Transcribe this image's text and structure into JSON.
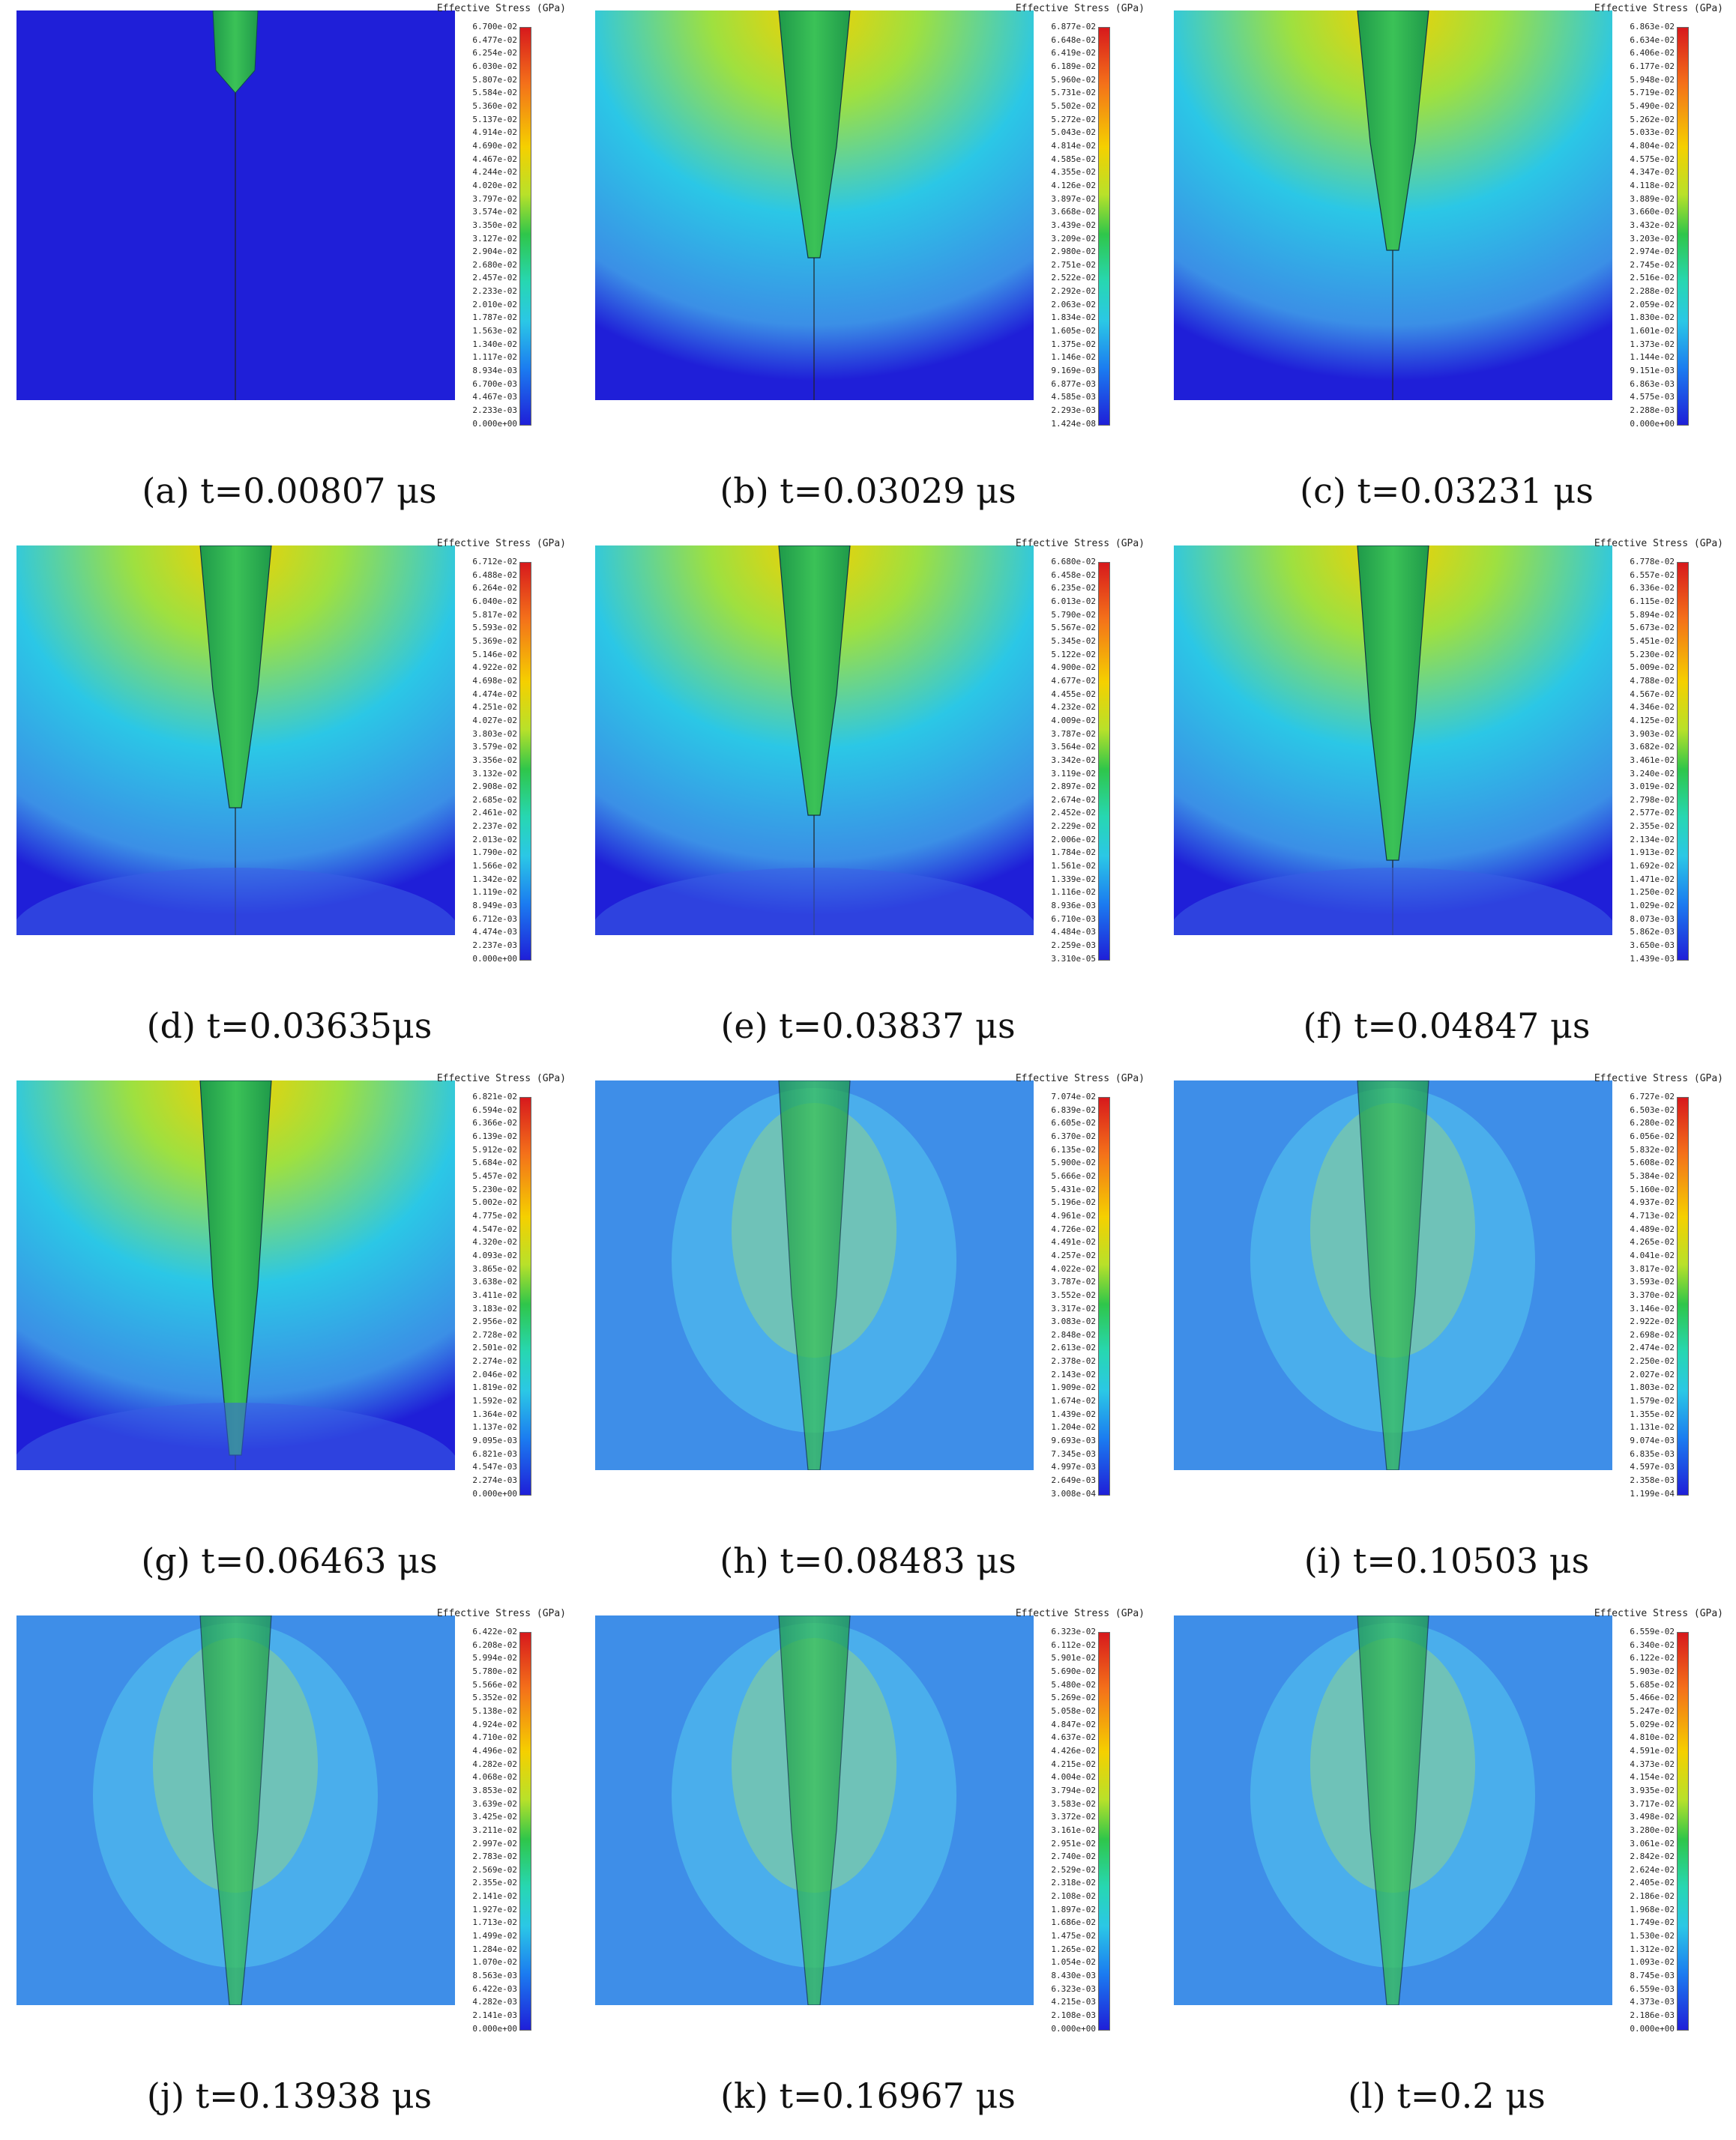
{
  "colorbar_title": "Effective Stress (GPa)",
  "colors": {
    "low": "#1f1fd8",
    "cyan": "#2bc7e6",
    "green": "#2fc64a",
    "yellow": "#f5d000",
    "red": "#d7191c"
  },
  "panels": [
    {
      "caption": "(a) t=0.00807 μs",
      "ticks": [
        "6.700e-02",
        "6.477e-02",
        "6.254e-02",
        "6.030e-02",
        "5.807e-02",
        "5.584e-02",
        "5.360e-02",
        "5.137e-02",
        "4.914e-02",
        "4.690e-02",
        "4.467e-02",
        "4.244e-02",
        "4.020e-02",
        "3.797e-02",
        "3.574e-02",
        "3.350e-02",
        "3.127e-02",
        "2.904e-02",
        "2.680e-02",
        "2.457e-02",
        "2.233e-02",
        "2.010e-02",
        "1.787e-02",
        "1.563e-02",
        "1.340e-02",
        "1.117e-02",
        "8.934e-03",
        "6.700e-03",
        "4.467e-03",
        "2.233e-03",
        "0.000e+00"
      ]
    },
    {
      "caption": "(b) t=0.03029 μs",
      "ticks": [
        "6.877e-02",
        "6.648e-02",
        "6.419e-02",
        "6.189e-02",
        "5.960e-02",
        "5.731e-02",
        "5.502e-02",
        "5.272e-02",
        "5.043e-02",
        "4.814e-02",
        "4.585e-02",
        "4.355e-02",
        "4.126e-02",
        "3.897e-02",
        "3.668e-02",
        "3.439e-02",
        "3.209e-02",
        "2.980e-02",
        "2.751e-02",
        "2.522e-02",
        "2.292e-02",
        "2.063e-02",
        "1.834e-02",
        "1.605e-02",
        "1.375e-02",
        "1.146e-02",
        "9.169e-03",
        "6.877e-03",
        "4.585e-03",
        "2.293e-03",
        "1.424e-08"
      ]
    },
    {
      "caption": "(c) t=0.03231 μs",
      "ticks": [
        "6.863e-02",
        "6.634e-02",
        "6.406e-02",
        "6.177e-02",
        "5.948e-02",
        "5.719e-02",
        "5.490e-02",
        "5.262e-02",
        "5.033e-02",
        "4.804e-02",
        "4.575e-02",
        "4.347e-02",
        "4.118e-02",
        "3.889e-02",
        "3.660e-02",
        "3.432e-02",
        "3.203e-02",
        "2.974e-02",
        "2.745e-02",
        "2.516e-02",
        "2.288e-02",
        "2.059e-02",
        "1.830e-02",
        "1.601e-02",
        "1.373e-02",
        "1.144e-02",
        "9.151e-03",
        "6.863e-03",
        "4.575e-03",
        "2.288e-03",
        "0.000e+00"
      ]
    },
    {
      "caption": "(d) t=0.03635μs",
      "ticks": [
        "6.712e-02",
        "6.488e-02",
        "6.264e-02",
        "6.040e-02",
        "5.817e-02",
        "5.593e-02",
        "5.369e-02",
        "5.146e-02",
        "4.922e-02",
        "4.698e-02",
        "4.474e-02",
        "4.251e-02",
        "4.027e-02",
        "3.803e-02",
        "3.579e-02",
        "3.356e-02",
        "3.132e-02",
        "2.908e-02",
        "2.685e-02",
        "2.461e-02",
        "2.237e-02",
        "2.013e-02",
        "1.790e-02",
        "1.566e-02",
        "1.342e-02",
        "1.119e-02",
        "8.949e-03",
        "6.712e-03",
        "4.474e-03",
        "2.237e-03",
        "0.000e+00"
      ]
    },
    {
      "caption": "(e) t=0.03837 μs",
      "ticks": [
        "6.680e-02",
        "6.458e-02",
        "6.235e-02",
        "6.013e-02",
        "5.790e-02",
        "5.567e-02",
        "5.345e-02",
        "5.122e-02",
        "4.900e-02",
        "4.677e-02",
        "4.455e-02",
        "4.232e-02",
        "4.009e-02",
        "3.787e-02",
        "3.564e-02",
        "3.342e-02",
        "3.119e-02",
        "2.897e-02",
        "2.674e-02",
        "2.452e-02",
        "2.229e-02",
        "2.006e-02",
        "1.784e-02",
        "1.561e-02",
        "1.339e-02",
        "1.116e-02",
        "8.936e-03",
        "6.710e-03",
        "4.484e-03",
        "2.259e-03",
        "3.310e-05"
      ]
    },
    {
      "caption": "(f) t=0.04847 μs",
      "ticks": [
        "6.778e-02",
        "6.557e-02",
        "6.336e-02",
        "6.115e-02",
        "5.894e-02",
        "5.673e-02",
        "5.451e-02",
        "5.230e-02",
        "5.009e-02",
        "4.788e-02",
        "4.567e-02",
        "4.346e-02",
        "4.125e-02",
        "3.903e-02",
        "3.682e-02",
        "3.461e-02",
        "3.240e-02",
        "3.019e-02",
        "2.798e-02",
        "2.577e-02",
        "2.355e-02",
        "2.134e-02",
        "1.913e-02",
        "1.692e-02",
        "1.471e-02",
        "1.250e-02",
        "1.029e-02",
        "8.073e-03",
        "5.862e-03",
        "3.650e-03",
        "1.439e-03"
      ]
    },
    {
      "caption": "(g) t=0.06463 μs",
      "ticks": [
        "6.821e-02",
        "6.594e-02",
        "6.366e-02",
        "6.139e-02",
        "5.912e-02",
        "5.684e-02",
        "5.457e-02",
        "5.230e-02",
        "5.002e-02",
        "4.775e-02",
        "4.547e-02",
        "4.320e-02",
        "4.093e-02",
        "3.865e-02",
        "3.638e-02",
        "3.411e-02",
        "3.183e-02",
        "2.956e-02",
        "2.728e-02",
        "2.501e-02",
        "2.274e-02",
        "2.046e-02",
        "1.819e-02",
        "1.592e-02",
        "1.364e-02",
        "1.137e-02",
        "9.095e-03",
        "6.821e-03",
        "4.547e-03",
        "2.274e-03",
        "0.000e+00"
      ]
    },
    {
      "caption": "(h) t=0.08483 μs",
      "ticks": [
        "7.074e-02",
        "6.839e-02",
        "6.605e-02",
        "6.370e-02",
        "6.135e-02",
        "5.900e-02",
        "5.666e-02",
        "5.431e-02",
        "5.196e-02",
        "4.961e-02",
        "4.726e-02",
        "4.491e-02",
        "4.257e-02",
        "4.022e-02",
        "3.787e-02",
        "3.552e-02",
        "3.317e-02",
        "3.083e-02",
        "2.848e-02",
        "2.613e-02",
        "2.378e-02",
        "2.143e-02",
        "1.909e-02",
        "1.674e-02",
        "1.439e-02",
        "1.204e-02",
        "9.693e-03",
        "7.345e-03",
        "4.997e-03",
        "2.649e-03",
        "3.008e-04"
      ]
    },
    {
      "caption": "(i) t=0.10503 μs",
      "ticks": [
        "6.727e-02",
        "6.503e-02",
        "6.280e-02",
        "6.056e-02",
        "5.832e-02",
        "5.608e-02",
        "5.384e-02",
        "5.160e-02",
        "4.937e-02",
        "4.713e-02",
        "4.489e-02",
        "4.265e-02",
        "4.041e-02",
        "3.817e-02",
        "3.593e-02",
        "3.370e-02",
        "3.146e-02",
        "2.922e-02",
        "2.698e-02",
        "2.474e-02",
        "2.250e-02",
        "2.027e-02",
        "1.803e-02",
        "1.579e-02",
        "1.355e-02",
        "1.131e-02",
        "9.074e-03",
        "6.835e-03",
        "4.597e-03",
        "2.358e-03",
        "1.199e-04"
      ]
    },
    {
      "caption": "(j) t=0.13938 μs",
      "ticks": [
        "6.422e-02",
        "6.208e-02",
        "5.994e-02",
        "5.780e-02",
        "5.566e-02",
        "5.352e-02",
        "5.138e-02",
        "4.924e-02",
        "4.710e-02",
        "4.496e-02",
        "4.282e-02",
        "4.068e-02",
        "3.853e-02",
        "3.639e-02",
        "3.425e-02",
        "3.211e-02",
        "2.997e-02",
        "2.783e-02",
        "2.569e-02",
        "2.355e-02",
        "2.141e-02",
        "1.927e-02",
        "1.713e-02",
        "1.499e-02",
        "1.284e-02",
        "1.070e-02",
        "8.563e-03",
        "6.422e-03",
        "4.282e-03",
        "2.141e-03",
        "0.000e+00"
      ]
    },
    {
      "caption": "(k) t=0.16967 μs",
      "ticks": [
        "6.323e-02",
        "6.112e-02",
        "5.901e-02",
        "5.690e-02",
        "5.480e-02",
        "5.269e-02",
        "5.058e-02",
        "4.847e-02",
        "4.637e-02",
        "4.426e-02",
        "4.215e-02",
        "4.004e-02",
        "3.794e-02",
        "3.583e-02",
        "3.372e-02",
        "3.161e-02",
        "2.951e-02",
        "2.740e-02",
        "2.529e-02",
        "2.318e-02",
        "2.108e-02",
        "1.897e-02",
        "1.686e-02",
        "1.475e-02",
        "1.265e-02",
        "1.054e-02",
        "8.430e-03",
        "6.323e-03",
        "4.215e-03",
        "2.108e-03",
        "0.000e+00"
      ]
    },
    {
      "caption": "(l) t=0.2 μs",
      "ticks": [
        "6.559e-02",
        "6.340e-02",
        "6.122e-02",
        "5.903e-02",
        "5.685e-02",
        "5.466e-02",
        "5.247e-02",
        "5.029e-02",
        "4.810e-02",
        "4.591e-02",
        "4.373e-02",
        "4.154e-02",
        "3.935e-02",
        "3.717e-02",
        "3.498e-02",
        "3.280e-02",
        "3.061e-02",
        "2.842e-02",
        "2.624e-02",
        "2.405e-02",
        "2.186e-02",
        "1.968e-02",
        "1.749e-02",
        "1.530e-02",
        "1.312e-02",
        "1.093e-02",
        "8.745e-03",
        "6.559e-03",
        "4.373e-03",
        "2.186e-03",
        "0.000e+00"
      ]
    }
  ]
}
